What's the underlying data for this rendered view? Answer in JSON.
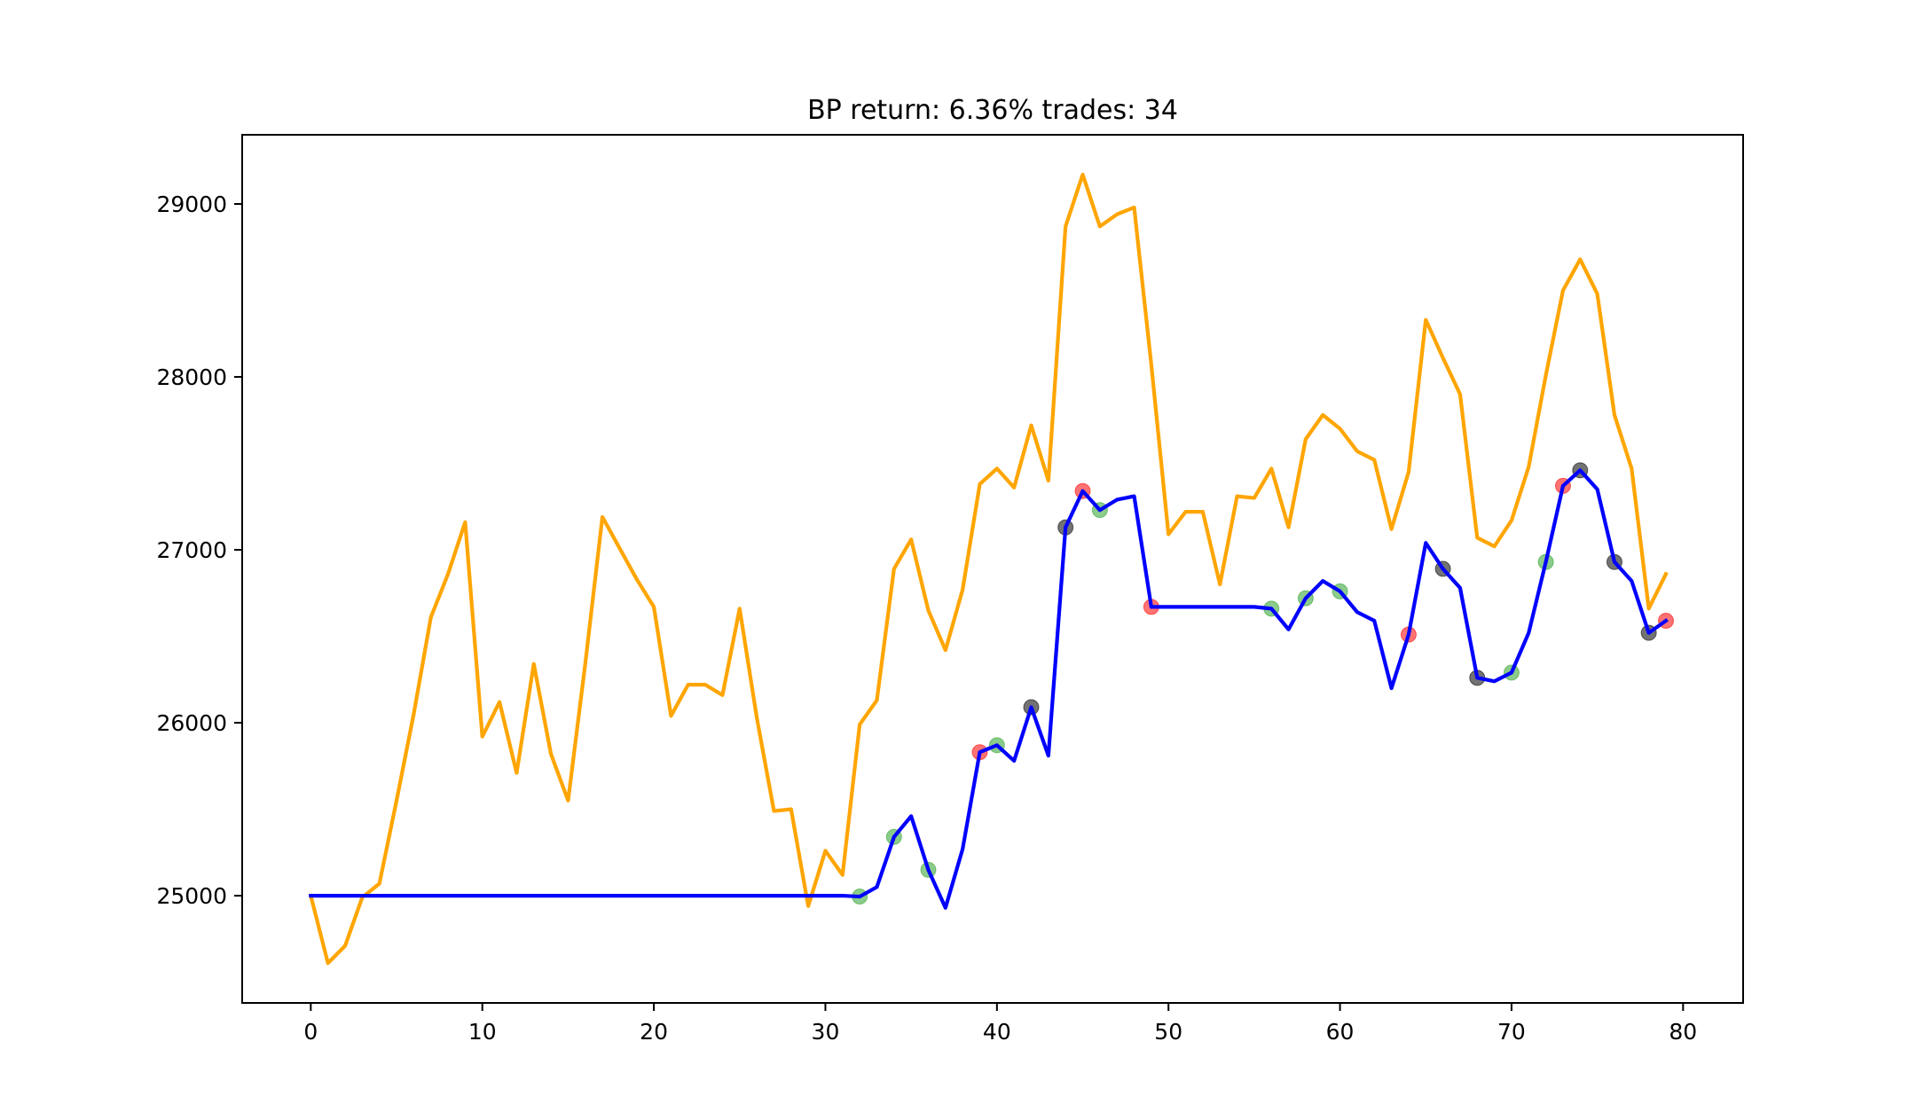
{
  "chart_data": {
    "type": "line",
    "title": "BP return: 6.36% trades: 34",
    "xlabel": "",
    "ylabel": "",
    "xlim": [
      -4,
      83.5
    ],
    "ylim": [
      24380,
      29400
    ],
    "x_ticks": [
      0,
      10,
      20,
      30,
      40,
      50,
      60,
      70,
      80
    ],
    "y_ticks": [
      25000,
      26000,
      27000,
      28000,
      29000
    ],
    "grid": false,
    "legend": "none",
    "series": [
      {
        "color": "#ffa500",
        "x": [
          0,
          1,
          2,
          3,
          4,
          5,
          6,
          7,
          8,
          9,
          10,
          11,
          12,
          13,
          14,
          15,
          16,
          17,
          18,
          19,
          20,
          21,
          22,
          23,
          24,
          25,
          26,
          27,
          28,
          29,
          30,
          31,
          32,
          33,
          34,
          35,
          36,
          37,
          38,
          39,
          40,
          41,
          42,
          43,
          44,
          45,
          46,
          47,
          48,
          49,
          50,
          51,
          52,
          53,
          54,
          55,
          56,
          57,
          58,
          59,
          60,
          61,
          62,
          63,
          64,
          65,
          66,
          67,
          68,
          69,
          70,
          71,
          72,
          73,
          74,
          75,
          76,
          77,
          78,
          79
        ],
        "values": [
          25000,
          24610,
          24710,
          24990,
          25070,
          25550,
          26050,
          26610,
          26860,
          27160,
          25920,
          26120,
          25710,
          26340,
          25820,
          25550,
          26340,
          27190,
          27010,
          26830,
          26670,
          26040,
          26220,
          26220,
          26160,
          26660,
          26030,
          25490,
          25500,
          24940,
          25260,
          25120,
          25990,
          26130,
          26890,
          27060,
          26650,
          26420,
          26770,
          27380,
          27470,
          27360,
          27720,
          27400,
          28870,
          29170,
          28870,
          28940,
          28980,
          28070,
          27090,
          27220,
          27220,
          26800,
          27310,
          27300,
          27470,
          27130,
          27640,
          27780,
          27700,
          27570,
          27520,
          27120,
          27450,
          28330,
          28110,
          27900,
          27070,
          27020,
          27170,
          27480,
          28010,
          28500,
          28680,
          28480,
          27780,
          27470,
          26660,
          26860
        ]
      },
      {
        "color": "#0000ff",
        "x": [
          0,
          1,
          2,
          3,
          4,
          5,
          6,
          7,
          8,
          9,
          10,
          11,
          12,
          13,
          14,
          15,
          16,
          17,
          18,
          19,
          20,
          21,
          22,
          23,
          24,
          25,
          26,
          27,
          28,
          29,
          30,
          31,
          32,
          33,
          34,
          35,
          36,
          37,
          38,
          39,
          40,
          41,
          42,
          43,
          44,
          45,
          46,
          47,
          48,
          49,
          50,
          51,
          52,
          53,
          54,
          55,
          56,
          57,
          58,
          59,
          60,
          61,
          62,
          63,
          64,
          65,
          66,
          67,
          68,
          69,
          70,
          71,
          72,
          73,
          74,
          75,
          76,
          77,
          78,
          79
        ],
        "values": [
          25000,
          25000,
          25000,
          25000,
          25000,
          25000,
          25000,
          25000,
          25000,
          25000,
          25000,
          25000,
          25000,
          25000,
          25000,
          25000,
          25000,
          25000,
          25000,
          25000,
          25000,
          25000,
          25000,
          25000,
          25000,
          25000,
          25000,
          25000,
          25000,
          25000,
          25000,
          25000,
          24995,
          25050,
          25340,
          25460,
          25150,
          24930,
          25270,
          25830,
          25870,
          25780,
          26090,
          25810,
          27130,
          27340,
          27230,
          27290,
          27310,
          26670,
          26670,
          26670,
          26670,
          26670,
          26670,
          26670,
          26660,
          26540,
          26720,
          26820,
          26760,
          26640,
          26590,
          26200,
          26510,
          27040,
          26890,
          26780,
          26260,
          26240,
          26290,
          26520,
          26930,
          27370,
          27460,
          27350,
          26930,
          26820,
          26520,
          26590
        ]
      }
    ],
    "markers": [
      {
        "x": 32,
        "y": 24995,
        "color": "#2ca02c"
      },
      {
        "x": 34,
        "y": 25340,
        "color": "#2ca02c"
      },
      {
        "x": 36,
        "y": 25150,
        "color": "#2ca02c"
      },
      {
        "x": 39,
        "y": 25830,
        "color": "#ff0000"
      },
      {
        "x": 40,
        "y": 25870,
        "color": "#2ca02c"
      },
      {
        "x": 42,
        "y": 26090,
        "color": "#000000"
      },
      {
        "x": 44,
        "y": 27130,
        "color": "#000000"
      },
      {
        "x": 45,
        "y": 27340,
        "color": "#ff0000"
      },
      {
        "x": 46,
        "y": 27230,
        "color": "#2ca02c"
      },
      {
        "x": 49,
        "y": 26670,
        "color": "#ff0000"
      },
      {
        "x": 56,
        "y": 26660,
        "color": "#2ca02c"
      },
      {
        "x": 58,
        "y": 26720,
        "color": "#2ca02c"
      },
      {
        "x": 60,
        "y": 26760,
        "color": "#2ca02c"
      },
      {
        "x": 64,
        "y": 26510,
        "color": "#ff0000"
      },
      {
        "x": 66,
        "y": 26890,
        "color": "#000000"
      },
      {
        "x": 68,
        "y": 26260,
        "color": "#000000"
      },
      {
        "x": 70,
        "y": 26290,
        "color": "#2ca02c"
      },
      {
        "x": 72,
        "y": 26930,
        "color": "#2ca02c"
      },
      {
        "x": 73,
        "y": 27370,
        "color": "#ff0000"
      },
      {
        "x": 74,
        "y": 27460,
        "color": "#000000"
      },
      {
        "x": 76,
        "y": 26930,
        "color": "#000000"
      },
      {
        "x": 78,
        "y": 26520,
        "color": "#000000"
      },
      {
        "x": 79,
        "y": 26590,
        "color": "#ff0000"
      }
    ]
  }
}
